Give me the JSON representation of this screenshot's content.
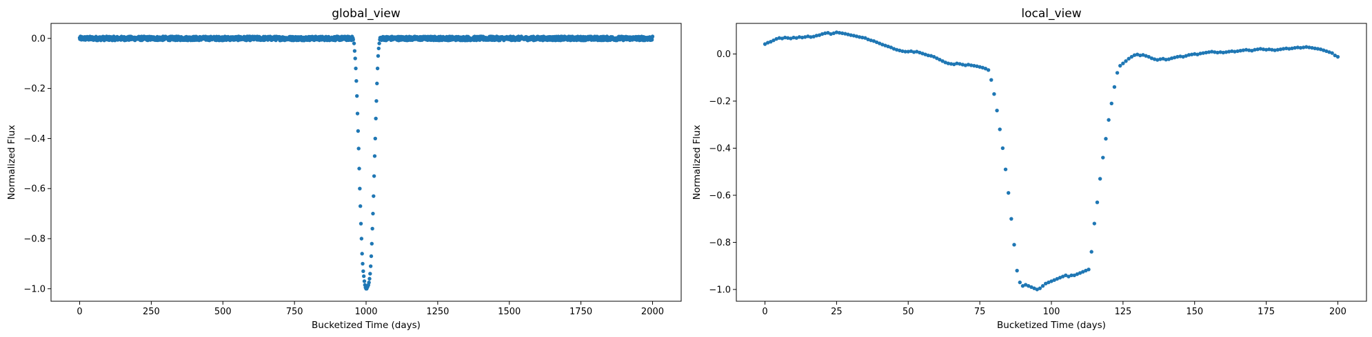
{
  "chart_data": [
    {
      "id": "global",
      "type": "scatter",
      "title": "global_view",
      "xlabel": "Bucketized Time (days)",
      "ylabel": "Normalized Flux",
      "xlim": [
        -100,
        2100
      ],
      "ylim": [
        -1.05,
        0.06
      ],
      "xticks": [
        0,
        250,
        500,
        750,
        1000,
        1250,
        1500,
        1750,
        2000
      ],
      "yticks": [
        0.0,
        -0.2,
        -0.4,
        -0.6,
        -0.8,
        -1.0
      ],
      "ytick_labels": [
        "0.0",
        "−0.2",
        "−0.4",
        "−0.6",
        "−0.8",
        "−1.0"
      ],
      "grid": false,
      "color": "#1f77b4",
      "series": [
        {
          "baseline_points": 2001,
          "baseline_range": [
            0,
            2000
          ],
          "baseline_value": 0.0,
          "baseline_scatter": 0.008,
          "dip": [
            [
              955,
              -0.005
            ],
            [
              958,
              -0.02
            ],
            [
              960,
              -0.05
            ],
            [
              962,
              -0.08
            ],
            [
              964,
              -0.12
            ],
            [
              966,
              -0.17
            ],
            [
              968,
              -0.23
            ],
            [
              970,
              -0.3
            ],
            [
              972,
              -0.37
            ],
            [
              974,
              -0.44
            ],
            [
              976,
              -0.52
            ],
            [
              978,
              -0.6
            ],
            [
              980,
              -0.67
            ],
            [
              982,
              -0.74
            ],
            [
              984,
              -0.8
            ],
            [
              986,
              -0.86
            ],
            [
              988,
              -0.9
            ],
            [
              990,
              -0.93
            ],
            [
              992,
              -0.95
            ],
            [
              994,
              -0.97
            ],
            [
              996,
              -0.985
            ],
            [
              998,
              -0.995
            ],
            [
              1000,
              -1.0
            ],
            [
              1002,
              -1.0
            ],
            [
              1004,
              -0.995
            ],
            [
              1006,
              -0.99
            ],
            [
              1008,
              -0.985
            ],
            [
              1010,
              -0.975
            ],
            [
              1012,
              -0.96
            ],
            [
              1014,
              -0.94
            ],
            [
              1016,
              -0.91
            ],
            [
              1018,
              -0.87
            ],
            [
              1020,
              -0.82
            ],
            [
              1022,
              -0.76
            ],
            [
              1024,
              -0.7
            ],
            [
              1026,
              -0.63
            ],
            [
              1028,
              -0.55
            ],
            [
              1030,
              -0.47
            ],
            [
              1032,
              -0.4
            ],
            [
              1034,
              -0.32
            ],
            [
              1036,
              -0.25
            ],
            [
              1038,
              -0.18
            ],
            [
              1040,
              -0.12
            ],
            [
              1042,
              -0.07
            ],
            [
              1044,
              -0.04
            ],
            [
              1046,
              -0.02
            ],
            [
              1048,
              -0.005
            ]
          ]
        }
      ]
    },
    {
      "id": "local",
      "type": "scatter",
      "title": "local_view",
      "xlabel": "Bucketized Time (days)",
      "ylabel": "Normalized Flux",
      "xlim": [
        -10,
        210
      ],
      "ylim": [
        -1.05,
        0.13
      ],
      "xticks": [
        0,
        25,
        50,
        75,
        100,
        125,
        150,
        175,
        200
      ],
      "yticks": [
        0.0,
        -0.2,
        -0.4,
        -0.6,
        -0.8,
        -1.0
      ],
      "ytick_labels": [
        "0.0",
        "−0.2",
        "−0.4",
        "−0.6",
        "−0.8",
        "−1.0"
      ],
      "grid": false,
      "color": "#1f77b4",
      "series": [
        {
          "points_x_step": 1,
          "points": [
            [
              0,
              0.042
            ],
            [
              1,
              0.048
            ],
            [
              2,
              0.052
            ],
            [
              3,
              0.058
            ],
            [
              4,
              0.064
            ],
            [
              5,
              0.068
            ],
            [
              6,
              0.066
            ],
            [
              7,
              0.07
            ],
            [
              8,
              0.068
            ],
            [
              9,
              0.066
            ],
            [
              10,
              0.07
            ],
            [
              11,
              0.068
            ],
            [
              12,
              0.072
            ],
            [
              13,
              0.07
            ],
            [
              14,
              0.072
            ],
            [
              15,
              0.075
            ],
            [
              16,
              0.072
            ],
            [
              17,
              0.074
            ],
            [
              18,
              0.078
            ],
            [
              19,
              0.08
            ],
            [
              20,
              0.085
            ],
            [
              21,
              0.088
            ],
            [
              22,
              0.09
            ],
            [
              23,
              0.085
            ],
            [
              24,
              0.088
            ],
            [
              25,
              0.092
            ],
            [
              26,
              0.09
            ],
            [
              27,
              0.088
            ],
            [
              28,
              0.086
            ],
            [
              29,
              0.083
            ],
            [
              30,
              0.08
            ],
            [
              31,
              0.078
            ],
            [
              32,
              0.075
            ],
            [
              33,
              0.072
            ],
            [
              34,
              0.07
            ],
            [
              35,
              0.068
            ],
            [
              36,
              0.062
            ],
            [
              37,
              0.058
            ],
            [
              38,
              0.055
            ],
            [
              39,
              0.05
            ],
            [
              40,
              0.045
            ],
            [
              41,
              0.04
            ],
            [
              42,
              0.036
            ],
            [
              43,
              0.032
            ],
            [
              44,
              0.028
            ],
            [
              45,
              0.022
            ],
            [
              46,
              0.018
            ],
            [
              47,
              0.015
            ],
            [
              48,
              0.012
            ],
            [
              49,
              0.01
            ],
            [
              50,
              0.01
            ],
            [
              51,
              0.012
            ],
            [
              52,
              0.008
            ],
            [
              53,
              0.01
            ],
            [
              54,
              0.006
            ],
            [
              55,
              0.002
            ],
            [
              56,
              -0.002
            ],
            [
              57,
              -0.006
            ],
            [
              58,
              -0.008
            ],
            [
              59,
              -0.012
            ],
            [
              60,
              -0.018
            ],
            [
              61,
              -0.024
            ],
            [
              62,
              -0.03
            ],
            [
              63,
              -0.036
            ],
            [
              64,
              -0.04
            ],
            [
              65,
              -0.042
            ],
            [
              66,
              -0.044
            ],
            [
              67,
              -0.04
            ],
            [
              68,
              -0.042
            ],
            [
              69,
              -0.045
            ],
            [
              70,
              -0.048
            ],
            [
              71,
              -0.045
            ],
            [
              72,
              -0.048
            ],
            [
              73,
              -0.05
            ],
            [
              74,
              -0.052
            ],
            [
              75,
              -0.055
            ],
            [
              76,
              -0.058
            ],
            [
              77,
              -0.062
            ],
            [
              78,
              -0.068
            ],
            [
              79,
              -0.11
            ],
            [
              80,
              -0.17
            ],
            [
              81,
              -0.24
            ],
            [
              82,
              -0.32
            ],
            [
              83,
              -0.4
            ],
            [
              84,
              -0.49
            ],
            [
              85,
              -0.59
            ],
            [
              86,
              -0.7
            ],
            [
              87,
              -0.81
            ],
            [
              88,
              -0.92
            ],
            [
              89,
              -0.97
            ],
            [
              90,
              -0.985
            ],
            [
              91,
              -0.98
            ],
            [
              92,
              -0.985
            ],
            [
              93,
              -0.99
            ],
            [
              94,
              -0.995
            ],
            [
              95,
              -1.0
            ],
            [
              96,
              -0.995
            ],
            [
              97,
              -0.985
            ],
            [
              98,
              -0.975
            ],
            [
              99,
              -0.97
            ],
            [
              100,
              -0.965
            ],
            [
              101,
              -0.96
            ],
            [
              102,
              -0.955
            ],
            [
              103,
              -0.95
            ],
            [
              104,
              -0.945
            ],
            [
              105,
              -0.94
            ],
            [
              106,
              -0.945
            ],
            [
              107,
              -0.94
            ],
            [
              108,
              -0.94
            ],
            [
              109,
              -0.935
            ],
            [
              110,
              -0.93
            ],
            [
              111,
              -0.925
            ],
            [
              112,
              -0.92
            ],
            [
              113,
              -0.915
            ],
            [
              114,
              -0.84
            ],
            [
              115,
              -0.72
            ],
            [
              116,
              -0.63
            ],
            [
              117,
              -0.53
            ],
            [
              118,
              -0.44
            ],
            [
              119,
              -0.36
            ],
            [
              120,
              -0.28
            ],
            [
              121,
              -0.21
            ],
            [
              122,
              -0.14
            ],
            [
              123,
              -0.08
            ],
            [
              124,
              -0.05
            ],
            [
              125,
              -0.04
            ],
            [
              126,
              -0.03
            ],
            [
              127,
              -0.02
            ],
            [
              128,
              -0.012
            ],
            [
              129,
              -0.005
            ],
            [
              130,
              -0.002
            ],
            [
              131,
              -0.006
            ],
            [
              132,
              -0.004
            ],
            [
              133,
              -0.008
            ],
            [
              134,
              -0.012
            ],
            [
              135,
              -0.018
            ],
            [
              136,
              -0.022
            ],
            [
              137,
              -0.025
            ],
            [
              138,
              -0.022
            ],
            [
              139,
              -0.02
            ],
            [
              140,
              -0.024
            ],
            [
              141,
              -0.022
            ],
            [
              142,
              -0.018
            ],
            [
              143,
              -0.015
            ],
            [
              144,
              -0.012
            ],
            [
              145,
              -0.01
            ],
            [
              146,
              -0.012
            ],
            [
              147,
              -0.008
            ],
            [
              148,
              -0.004
            ],
            [
              149,
              -0.002
            ],
            [
              150,
              0.0
            ],
            [
              151,
              -0.002
            ],
            [
              152,
              0.002
            ],
            [
              153,
              0.004
            ],
            [
              154,
              0.006
            ],
            [
              155,
              0.008
            ],
            [
              156,
              0.01
            ],
            [
              157,
              0.008
            ],
            [
              158,
              0.006
            ],
            [
              159,
              0.008
            ],
            [
              160,
              0.006
            ],
            [
              161,
              0.008
            ],
            [
              162,
              0.01
            ],
            [
              163,
              0.012
            ],
            [
              164,
              0.01
            ],
            [
              165,
              0.012
            ],
            [
              166,
              0.014
            ],
            [
              167,
              0.016
            ],
            [
              168,
              0.018
            ],
            [
              169,
              0.016
            ],
            [
              170,
              0.014
            ],
            [
              171,
              0.018
            ],
            [
              172,
              0.02
            ],
            [
              173,
              0.022
            ],
            [
              174,
              0.02
            ],
            [
              175,
              0.018
            ],
            [
              176,
              0.02
            ],
            [
              177,
              0.018
            ],
            [
              178,
              0.016
            ],
            [
              179,
              0.018
            ],
            [
              180,
              0.02
            ],
            [
              181,
              0.022
            ],
            [
              182,
              0.024
            ],
            [
              183,
              0.022
            ],
            [
              184,
              0.024
            ],
            [
              185,
              0.026
            ],
            [
              186,
              0.028
            ],
            [
              187,
              0.026
            ],
            [
              188,
              0.028
            ],
            [
              189,
              0.03
            ],
            [
              190,
              0.028
            ],
            [
              191,
              0.026
            ],
            [
              192,
              0.024
            ],
            [
              193,
              0.022
            ],
            [
              194,
              0.02
            ],
            [
              195,
              0.016
            ],
            [
              196,
              0.012
            ],
            [
              197,
              0.008
            ],
            [
              198,
              0.004
            ],
            [
              199,
              -0.006
            ],
            [
              200,
              -0.012
            ]
          ]
        }
      ]
    }
  ]
}
